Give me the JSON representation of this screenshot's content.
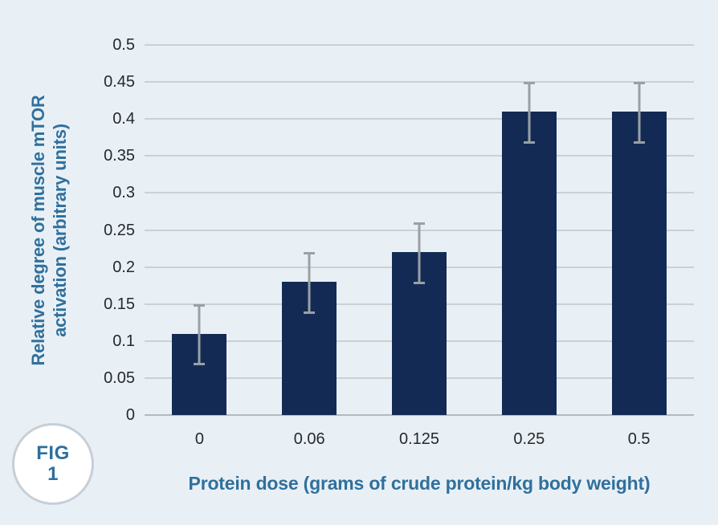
{
  "figure_badge": {
    "line1": "FIG",
    "line2": "1"
  },
  "chart_data": {
    "type": "bar",
    "title": "",
    "categories": [
      "0",
      "0.06",
      "0.125",
      "0.25",
      "0.5"
    ],
    "values": [
      0.11,
      0.18,
      0.22,
      0.41,
      0.41
    ],
    "error_bars": [
      0.04,
      0.04,
      0.04,
      0.04,
      0.04
    ],
    "xlabel": "Protein dose (grams of crude protein/kg body weight)",
    "ylabel_lines": [
      "Relative degree of muscle mTOR",
      "activation (arbitrary units)"
    ],
    "ylim": [
      0,
      0.5
    ],
    "yticks": [
      0,
      0.05,
      0.1,
      0.15,
      0.2,
      0.25,
      0.3,
      0.35,
      0.4,
      0.45,
      0.5
    ],
    "ytick_labels": [
      "0",
      "0.05",
      "0.1",
      "0.15",
      "0.2",
      "0.25",
      "0.3",
      "0.35",
      "0.4",
      "0.45",
      "0.5"
    ],
    "grid": true,
    "legend_position": "none"
  },
  "colors": {
    "background": "#e9f0f5",
    "bar": "#132b54",
    "axis_title": "#30709d",
    "tick_label": "#26282b",
    "gridline": "#ccd0d4",
    "baseline": "#b4b9bd",
    "error_bar": "#9aa0a5",
    "badge_border": "#c6cfd7",
    "badge_background": "#ffffff",
    "badge_text": "#2d6f9e"
  }
}
